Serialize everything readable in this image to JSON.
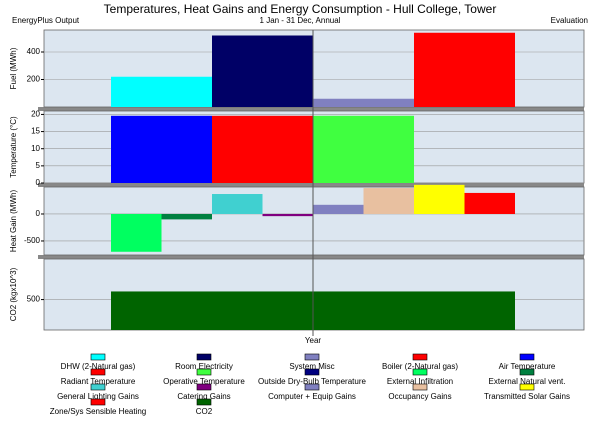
{
  "header": {
    "title": "Temperatures, Heat Gains and Energy Consumption - Hull College, Tower",
    "subtitle": "1 Jan - 31 Dec, Annual",
    "left_note": "EnergyPlus Output",
    "right_note": "Evaluation",
    "xlabel": "Year"
  },
  "chart_data": [
    {
      "type": "bar",
      "ylabel": "Fuel (MWh)",
      "ylim": [
        0,
        560
      ],
      "yticks": [
        200,
        400
      ],
      "grid": true,
      "series": [
        {
          "name": "DHW (2-Natural gas)",
          "color": "#00ffff",
          "values": [
            220
          ]
        },
        {
          "name": "Room Electricity",
          "color": "#000066",
          "values": [
            520
          ]
        },
        {
          "name": "System Misc",
          "color": "#8080c0",
          "values": [
            60
          ]
        },
        {
          "name": "Boiler (2-Natural gas)",
          "color": "#ff0000",
          "values": [
            540
          ]
        }
      ]
    },
    {
      "type": "bar",
      "ylabel": "Temperature (°C)",
      "ylim": [
        0,
        21
      ],
      "yticks": [
        0,
        5,
        10,
        15,
        20
      ],
      "grid": true,
      "series": [
        {
          "name": "Air Temperature",
          "color": "#0000ff",
          "values": [
            19.6
          ]
        },
        {
          "name": "Radiant Temperature",
          "color": "#ff0000",
          "values": [
            19.6
          ]
        },
        {
          "name": "Operative Temperature",
          "color": "#40ff40",
          "values": [
            19.6
          ]
        },
        {
          "name": "Outside Dry-Bulb Temperature",
          "color": "#000080",
          "values": [
            0
          ]
        }
      ]
    },
    {
      "type": "bar",
      "ylabel": "Heat Gain (MWh)",
      "ylim": [
        -760,
        500
      ],
      "yticks": [
        -500,
        0
      ],
      "grid": true,
      "series": [
        {
          "name": "External Infiltration",
          "color": "#00ff60",
          "values": [
            -700
          ]
        },
        {
          "name": "External Natural vent.",
          "color": "#008040",
          "values": [
            -100
          ]
        },
        {
          "name": "General Lighting Gains",
          "color": "#40d0d0",
          "values": [
            370
          ]
        },
        {
          "name": "Catering Gains",
          "color": "#800080",
          "values": [
            -40
          ]
        },
        {
          "name": "Computer + Equip Gains",
          "color": "#8080c0",
          "values": [
            170
          ]
        },
        {
          "name": "Occupancy Gains",
          "color": "#e8c0a0",
          "values": [
            480
          ]
        },
        {
          "name": "Transmitted Solar Gains",
          "color": "#ffff00",
          "values": [
            540
          ]
        },
        {
          "name": "Zone/Sys Sensible Heating",
          "color": "#ff0000",
          "values": [
            390
          ]
        }
      ]
    },
    {
      "type": "bar",
      "ylabel": "CO2 (kgx10^3)",
      "ylim": [
        350,
        700
      ],
      "yticks": [
        500
      ],
      "grid": true,
      "series": [
        {
          "name": "CO2",
          "color": "#006400",
          "values": [
            540
          ]
        }
      ]
    }
  ]
}
